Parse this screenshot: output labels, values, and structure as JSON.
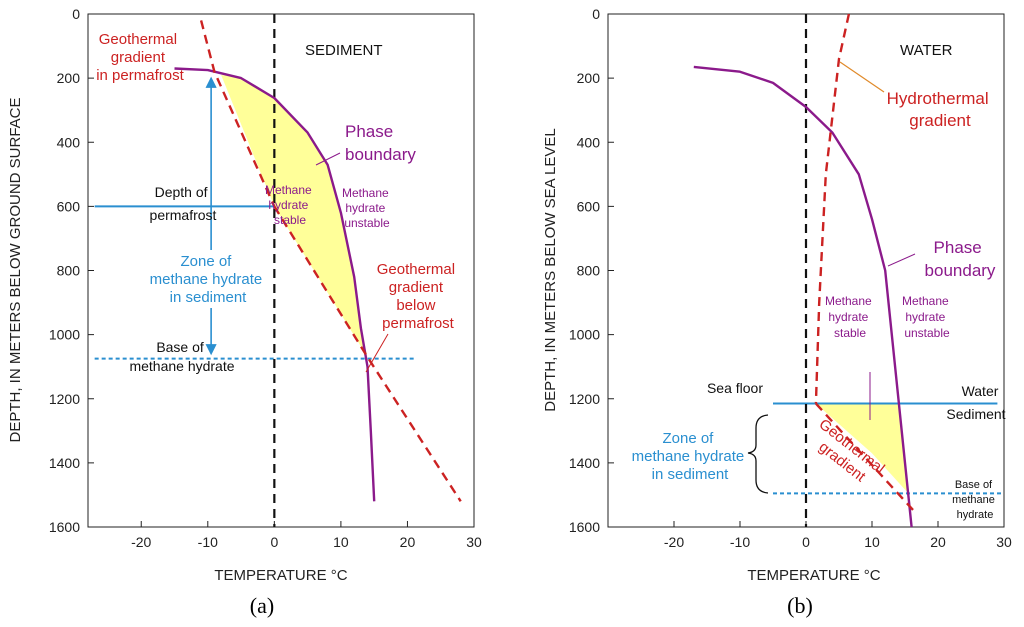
{
  "chart_data": [
    {
      "type": "line",
      "panel_label": "(a)",
      "xlabel": "TEMPERATURE °C",
      "ylabel": "DEPTH, IN METERS BELOW GROUND SURFACE",
      "xlim": [
        -28,
        30
      ],
      "ylim": [
        0,
        1600
      ],
      "xticks": [
        -20,
        -10,
        0,
        10,
        20,
        30
      ],
      "yticks": [
        0,
        200,
        400,
        600,
        800,
        1000,
        1200,
        1400,
        1600
      ],
      "region_label": "SEDIMENT",
      "series": [
        {
          "name": "Phase boundary",
          "color": "#8b1a8b",
          "style": "solid",
          "points": [
            [
              -15,
              170
            ],
            [
              -10,
              175
            ],
            [
              -5,
              200
            ],
            [
              0,
              262
            ],
            [
              5,
              370
            ],
            [
              8,
              470
            ],
            [
              10,
              620
            ],
            [
              12,
              820
            ],
            [
              13,
              980
            ],
            [
              14,
              1100
            ],
            [
              14.5,
              1300
            ],
            [
              15,
              1520
            ]
          ]
        },
        {
          "name": "Geothermal gradient in permafrost",
          "color": "#cc2222",
          "style": "dashed",
          "points": [
            [
              -11,
              20
            ],
            [
              -9,
              180
            ],
            [
              0,
              600
            ]
          ]
        },
        {
          "name": "Geothermal gradient below permafrost",
          "color": "#cc2222",
          "style": "dashed",
          "points": [
            [
              0,
              600
            ],
            [
              14,
              1070
            ],
            [
              28,
              1520
            ]
          ]
        }
      ],
      "filled_region": {
        "name": "Methane hydrate stable",
        "color": "#ffff99",
        "points": [
          [
            -8,
            190
          ],
          [
            -5,
            200
          ],
          [
            0,
            262
          ],
          [
            5,
            370
          ],
          [
            8,
            470
          ],
          [
            10,
            620
          ],
          [
            12,
            820
          ],
          [
            13,
            980
          ],
          [
            14,
            1070
          ],
          [
            0,
            600
          ]
        ]
      },
      "reference_lines": [
        {
          "name": "Depth of permafrost",
          "y": 600,
          "x_from": -27,
          "x_to": 0,
          "color": "#2a8fd0",
          "style": "solid"
        },
        {
          "name": "Base of methane hydrate",
          "y": 1075,
          "x_from": -27,
          "x_to": 21,
          "color": "#2a8fd0",
          "style": "dotted"
        },
        {
          "name": "0 °C",
          "x": 0,
          "color": "#111111",
          "style": "dashed"
        }
      ],
      "zone_arrow": {
        "x": -9.5,
        "y_from": 190,
        "y_to": 1070
      },
      "annotations": {
        "gradient_perm": [
          "Geothermal",
          "gradient",
          "in permafrost"
        ],
        "phase": [
          "Phase",
          "boundary"
        ],
        "depth_perm": [
          "Depth of",
          "permafrost"
        ],
        "stable": [
          "Methane",
          "hydrate",
          "stable"
        ],
        "unstable": [
          "Methane",
          "hydrate",
          "unstable"
        ],
        "zone": [
          "Zone of",
          "methane hydrate",
          "in sediment"
        ],
        "gradient_below": [
          "Geothermal",
          "gradient",
          "below",
          "permafrost"
        ],
        "base": [
          "Base of",
          "methane hydrate"
        ]
      }
    },
    {
      "type": "line",
      "panel_label": "(b)",
      "xlabel": "TEMPERATURE °C",
      "ylabel": "DEPTH, IN METERS BELOW SEA LEVEL",
      "xlim": [
        -30,
        30
      ],
      "ylim": [
        0,
        1600
      ],
      "xticks": [
        -20,
        -10,
        0,
        10,
        20,
        30
      ],
      "yticks": [
        0,
        200,
        400,
        600,
        800,
        1000,
        1200,
        1400,
        1600
      ],
      "region_label": "WATER",
      "series": [
        {
          "name": "Phase boundary",
          "color": "#8b1a8b",
          "style": "solid",
          "points": [
            [
              -17,
              165
            ],
            [
              -10,
              180
            ],
            [
              -5,
              215
            ],
            [
              0,
              290
            ],
            [
              4,
              370
            ],
            [
              8,
              500
            ],
            [
              10,
              640
            ],
            [
              12,
              800
            ],
            [
              13,
              1000
            ],
            [
              14,
              1200
            ],
            [
              15,
              1400
            ],
            [
              16,
              1600
            ]
          ]
        },
        {
          "name": "Hydrothermal gradient",
          "color": "#cc2222",
          "style": "dashed",
          "points": [
            [
              6.5,
              0
            ],
            [
              5,
              140
            ],
            [
              3,
              500
            ],
            [
              2,
              900
            ],
            [
              1.5,
              1215
            ]
          ]
        },
        {
          "name": "Geothermal gradient",
          "color": "#cc2222",
          "style": "dashed",
          "points": [
            [
              1.5,
              1215
            ],
            [
              16.8,
              1560
            ]
          ]
        }
      ],
      "filled_region": {
        "name": "Methane hydrate stable",
        "color": "#ffff99",
        "points": [
          [
            1.5,
            1215
          ],
          [
            14,
            1215
          ],
          [
            14.5,
            1300
          ],
          [
            15,
            1400
          ],
          [
            15.5,
            1495
          ],
          [
            10,
            1370
          ]
        ]
      },
      "reference_lines": [
        {
          "name": "Sea floor",
          "y": 1215,
          "x_from": -5,
          "x_to": 29,
          "color": "#2a8fd0",
          "style": "solid"
        },
        {
          "name": "Base of methane hydrate",
          "y": 1495,
          "x_from": -5,
          "x_to": 30,
          "color": "#2a8fd0",
          "style": "dotted"
        },
        {
          "name": "0 °C",
          "x": 0,
          "color": "#111111",
          "style": "dashed"
        }
      ],
      "annotations": {
        "hydrothermal": [
          "Hydrothermal",
          "gradient"
        ],
        "phase": [
          "Phase",
          "boundary"
        ],
        "stable": [
          "Methane",
          "hydrate",
          "stable"
        ],
        "unstable": [
          "Methane",
          "hydrate",
          "unstable"
        ],
        "seafloor": [
          "Sea floor"
        ],
        "water": [
          "Water"
        ],
        "sediment": [
          "Sediment"
        ],
        "zone": [
          "Zone of",
          "methane hydrate",
          "in sediment"
        ],
        "geothermal": [
          "Geothermal",
          "gradient"
        ],
        "base": [
          "Base of",
          "methane",
          "hydrate"
        ]
      }
    }
  ]
}
